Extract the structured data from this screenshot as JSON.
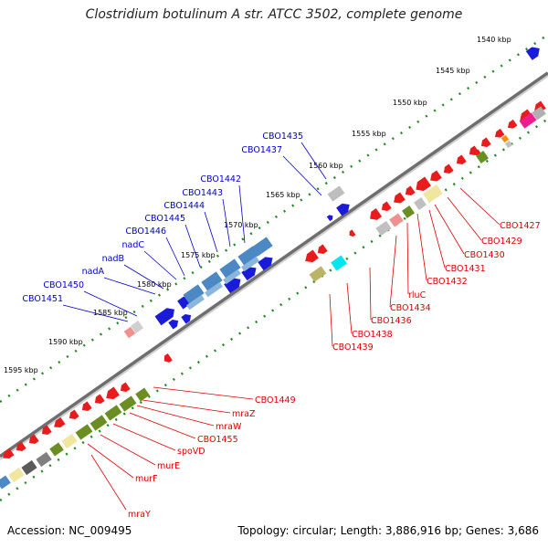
{
  "title": "Clostridium botulinum A str. ATCC 3502, complete genome",
  "footer": {
    "accession": "Accession: NC_009495",
    "topology": "Topology: circular; Length: 3,886,916 bp; Genes: 3,686"
  },
  "colors": {
    "forward_label": "#0000cc",
    "reverse_label": "#dd0000",
    "forward_gene": "#1a1adb",
    "reverse_gene": "#e81c1c",
    "backbone": "#707070",
    "tick": "#1e8a1e"
  },
  "scale_labels": [
    "1540 kbp",
    "1545 kbp",
    "1550 kbp",
    "1555 kbp",
    "1560 kbp",
    "1565 kbp",
    "1570 kbp",
    "1575 kbp",
    "1580 kbp",
    "1585 kbp",
    "1590 kbp",
    "1595 kbp"
  ],
  "forward_labels": [
    "CBO1435",
    "CBO1437",
    "CBO1442",
    "CBO1443",
    "CBO1444",
    "CBO1445",
    "CBO1446",
    "nadC",
    "nadB",
    "nadA",
    "CBO1450",
    "CBO1451"
  ],
  "reverse_labels_right": [
    "CBO1427",
    "CBO1429",
    "CBO1430",
    "CBO1431",
    "CBO1432",
    "rluC",
    "CBO1434",
    "CBO1436",
    "CBO1438",
    "CBO1439"
  ],
  "reverse_labels_left": [
    "CBO1449",
    "mraZ",
    "mraW",
    "CBO1455",
    "spoVD",
    "murE",
    "murF",
    "mraY"
  ]
}
